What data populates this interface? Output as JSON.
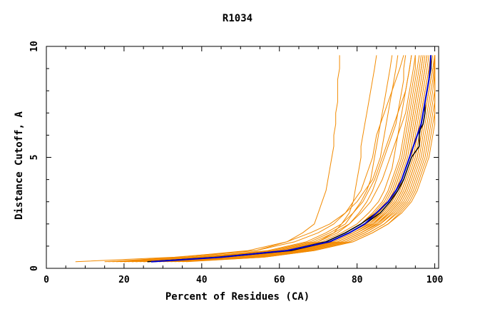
{
  "chart_data": {
    "type": "line",
    "title": "R1034",
    "xlabel": "Percent of Residues (CA)",
    "ylabel": "Distance Cutoff, A",
    "xlim": [
      0,
      101
    ],
    "ylim": [
      0,
      10
    ],
    "x_ticks": [
      0,
      20,
      40,
      60,
      80,
      100
    ],
    "y_ticks": [
      0,
      5,
      10
    ],
    "x_tick_labels": [
      "0",
      "20",
      "40",
      "60",
      "80",
      "100"
    ],
    "y_tick_labels": [
      "0",
      "5",
      "10"
    ],
    "grid": false,
    "legend": "none",
    "colors": {
      "models": "#f28a00",
      "highlight_blue": "#0000cc",
      "highlight_black": "#000000",
      "frame": "#000000"
    },
    "y_points": [
      0.3,
      0.5,
      0.8,
      1.2,
      1.6,
      2.0,
      2.5,
      3.0,
      3.5,
      4.0,
      4.5,
      5.0,
      5.5,
      6.0,
      6.5,
      7.0,
      7.5,
      8.0,
      8.5,
      9.0,
      9.6
    ],
    "series": [
      {
        "style": "highlight_blue",
        "x": [
          27,
          45,
          62,
          73,
          78,
          82,
          85,
          88,
          90,
          91.5,
          92.5,
          93.5,
          94.5,
          95.5,
          96.5,
          97,
          97.5,
          98,
          98.5,
          98.8,
          99
        ]
      },
      {
        "style": "highlight_black",
        "x": [
          26,
          44,
          62,
          72,
          77,
          81,
          85,
          88,
          90,
          91.5,
          92.5,
          93.5,
          94.5,
          95.5,
          97,
          97.5,
          97.5,
          98,
          98.5,
          99,
          99
        ]
      },
      {
        "style": "highlight_black",
        "x": [
          27,
          45,
          63,
          73,
          78,
          82,
          86,
          88.5,
          90.5,
          92,
          93,
          94,
          96,
          96,
          96.5,
          97,
          97.5,
          98,
          98.5,
          99,
          99
        ]
      },
      {
        "style": "model",
        "x": [
          7.5,
          33,
          54,
          62,
          66,
          69,
          70,
          71,
          72,
          72.5,
          73,
          73.5,
          74,
          74,
          74.5,
          74.5,
          75,
          75,
          75,
          75.5,
          75.5
        ]
      },
      {
        "style": "model",
        "x": [
          15,
          41,
          60,
          70,
          74,
          76,
          78,
          79,
          79.5,
          80,
          80.5,
          81,
          81,
          81.5,
          82,
          82.5,
          83,
          83.5,
          84,
          84.5,
          85
        ]
      },
      {
        "style": "model",
        "x": [
          18,
          38,
          58,
          68,
          73,
          77,
          79,
          81,
          82.5,
          83.5,
          84,
          84.5,
          85,
          85.5,
          86,
          86.5,
          87,
          87.5,
          88,
          88.5,
          89
        ]
      },
      {
        "style": "model",
        "x": [
          20,
          40,
          60,
          70,
          75,
          78,
          80.5,
          82.5,
          84,
          85,
          86,
          87,
          88,
          89,
          90,
          90.5,
          91,
          91.5,
          92,
          92,
          92.5
        ]
      },
      {
        "style": "model",
        "x": [
          22,
          42,
          61,
          71,
          76,
          80,
          83,
          85.5,
          87,
          88,
          89,
          89.5,
          90,
          90.5,
          91,
          91.5,
          92,
          92.5,
          93,
          93.5,
          94
        ]
      },
      {
        "style": "model",
        "x": [
          20,
          43,
          62,
          72,
          77,
          81,
          84,
          86.5,
          88,
          89,
          90,
          91,
          91.5,
          92,
          92.5,
          93,
          93.5,
          94,
          94.5,
          95,
          95
        ]
      },
      {
        "style": "model",
        "x": [
          23,
          44,
          63,
          73,
          78,
          82,
          85,
          87.5,
          89,
          90,
          91,
          92,
          92.5,
          93,
          93.5,
          94,
          94.5,
          95,
          95.5,
          96,
          96.5
        ]
      },
      {
        "style": "model",
        "x": [
          24,
          45,
          63,
          73,
          78,
          82,
          85.5,
          88,
          89.5,
          90.5,
          91.5,
          92.5,
          93,
          93.5,
          94,
          94.5,
          95,
          95.5,
          96,
          96.5,
          97
        ]
      },
      {
        "style": "model",
        "x": [
          25,
          46,
          64,
          74,
          79,
          83,
          86,
          88.5,
          90,
          91,
          92,
          93,
          93.5,
          94,
          94.5,
          95,
          95.5,
          96,
          96.5,
          97,
          97.5
        ]
      },
      {
        "style": "model",
        "x": [
          26,
          47,
          64,
          74,
          79,
          83,
          86.5,
          89,
          90.5,
          91.5,
          92.5,
          93.5,
          94,
          94.5,
          95,
          95.5,
          96,
          96.5,
          97,
          97.5,
          98
        ]
      },
      {
        "style": "model",
        "x": [
          27,
          48,
          65,
          75,
          80,
          84,
          87,
          89.5,
          91,
          92,
          93,
          94,
          94.5,
          95,
          95.5,
          96,
          96.5,
          97,
          97.5,
          98,
          98.5
        ]
      },
      {
        "style": "model",
        "x": [
          28,
          49,
          65,
          75,
          80,
          84,
          87.5,
          90,
          91.5,
          92.5,
          93.5,
          94.5,
          95,
          95.5,
          96,
          96.5,
          97,
          97.5,
          98,
          98.5,
          99
        ]
      },
      {
        "style": "model",
        "x": [
          29,
          50,
          66,
          76,
          81,
          85,
          88,
          90.5,
          92,
          93,
          94,
          95,
          95.5,
          96,
          96.5,
          97,
          97.5,
          98,
          98.5,
          99,
          99.5
        ]
      },
      {
        "style": "model",
        "x": [
          30,
          51,
          66,
          76,
          81,
          85,
          88.5,
          91,
          92.5,
          93.5,
          94.5,
          95.5,
          96,
          96.5,
          97,
          97.5,
          98,
          98.5,
          99,
          99.5,
          100
        ]
      },
      {
        "style": "model",
        "x": [
          31,
          52,
          67,
          77,
          82,
          86,
          89,
          91.5,
          93,
          94,
          95,
          96,
          96.5,
          97,
          97.5,
          98,
          98.5,
          99,
          99.5,
          99.8,
          100
        ]
      },
      {
        "style": "model",
        "x": [
          32,
          53,
          67,
          77,
          82,
          86,
          89.5,
          92,
          93.5,
          94.5,
          95.5,
          96.5,
          97,
          97.5,
          98,
          98.5,
          99,
          99.5,
          99.8,
          100,
          100
        ]
      },
      {
        "style": "model",
        "x": [
          33,
          54,
          68,
          78,
          83,
          87,
          90,
          92.5,
          94,
          95,
          96,
          97,
          97.5,
          98,
          98.5,
          99,
          99.5,
          100,
          100,
          100,
          100
        ]
      },
      {
        "style": "model",
        "x": [
          34,
          55,
          68,
          78,
          83,
          87,
          90.5,
          93,
          94.5,
          95.5,
          96.5,
          97.5,
          98,
          98.5,
          99,
          99.5,
          100,
          100,
          100,
          100,
          100
        ]
      },
      {
        "style": "model",
        "x": [
          35,
          56,
          69,
          79,
          84,
          88,
          91,
          93.5,
          95,
          96,
          97,
          98,
          98.5,
          99,
          99.5,
          100,
          100,
          100,
          100,
          100,
          100
        ]
      },
      {
        "style": "model",
        "x": [
          36,
          56,
          69,
          79,
          84,
          88,
          91.5,
          94,
          95.5,
          96.5,
          97.5,
          98.5,
          99,
          99.5,
          100,
          100,
          100,
          100,
          100,
          100,
          100
        ]
      },
      {
        "style": "model",
        "x": [
          17,
          36,
          54,
          64,
          70,
          74,
          77,
          79,
          81,
          82,
          83,
          84,
          84.5,
          85,
          86,
          87,
          88,
          89,
          90,
          91,
          92
        ]
      },
      {
        "style": "model",
        "x": [
          19,
          39,
          57,
          67,
          72,
          76,
          79,
          81.5,
          83,
          84.5,
          85.5,
          86.5,
          87.5,
          88.5,
          89.5,
          90.5,
          91.5,
          92.5,
          93,
          93.5,
          94
        ]
      },
      {
        "style": "model",
        "x": [
          21,
          41,
          59,
          69,
          74,
          78,
          81,
          83.5,
          85,
          86.5,
          87.5,
          88.5,
          89.5,
          90.5,
          91.5,
          92.5,
          93,
          93.5,
          94,
          94.5,
          95
        ]
      },
      {
        "style": "model",
        "x": [
          16,
          34,
          52,
          62,
          68,
          73,
          77,
          80,
          82,
          84,
          85,
          86,
          86.5,
          87,
          87.5,
          88,
          88.5,
          89,
          89.5,
          90,
          90.5
        ]
      },
      {
        "style": "model",
        "x": [
          22,
          43,
          62,
          72,
          77,
          81,
          84.5,
          87,
          88.5,
          89.5,
          90.5,
          91.5,
          92,
          92.5,
          93,
          93.5,
          94,
          94.5,
          95,
          95.5,
          96
        ]
      },
      {
        "style": "model",
        "x": [
          23,
          44,
          63,
          73,
          78,
          82.5,
          85.5,
          88,
          89.5,
          90.5,
          91.5,
          92.5,
          93,
          93.5,
          94,
          94.5,
          95,
          95.5,
          96,
          96.5,
          97
        ]
      },
      {
        "style": "model",
        "x": [
          25,
          46,
          64,
          74,
          79,
          83.5,
          86.5,
          89,
          90.5,
          91.5,
          92.5,
          93.5,
          94,
          94.5,
          95,
          95.5,
          96,
          96.5,
          97,
          97.5,
          98
        ]
      },
      {
        "style": "model",
        "x": [
          27,
          48,
          65,
          75,
          80,
          84.5,
          87.5,
          90,
          91.5,
          92.5,
          93.5,
          94.5,
          95,
          95.5,
          96,
          96.5,
          97,
          97.5,
          98,
          98.5,
          99
        ]
      },
      {
        "style": "model",
        "x": [
          29,
          50,
          66,
          76,
          81,
          85.5,
          88.5,
          91,
          92.5,
          93.5,
          94.5,
          95.5,
          96,
          96.5,
          97,
          97.5,
          98,
          98.5,
          99,
          99.5,
          100
        ]
      }
    ]
  }
}
